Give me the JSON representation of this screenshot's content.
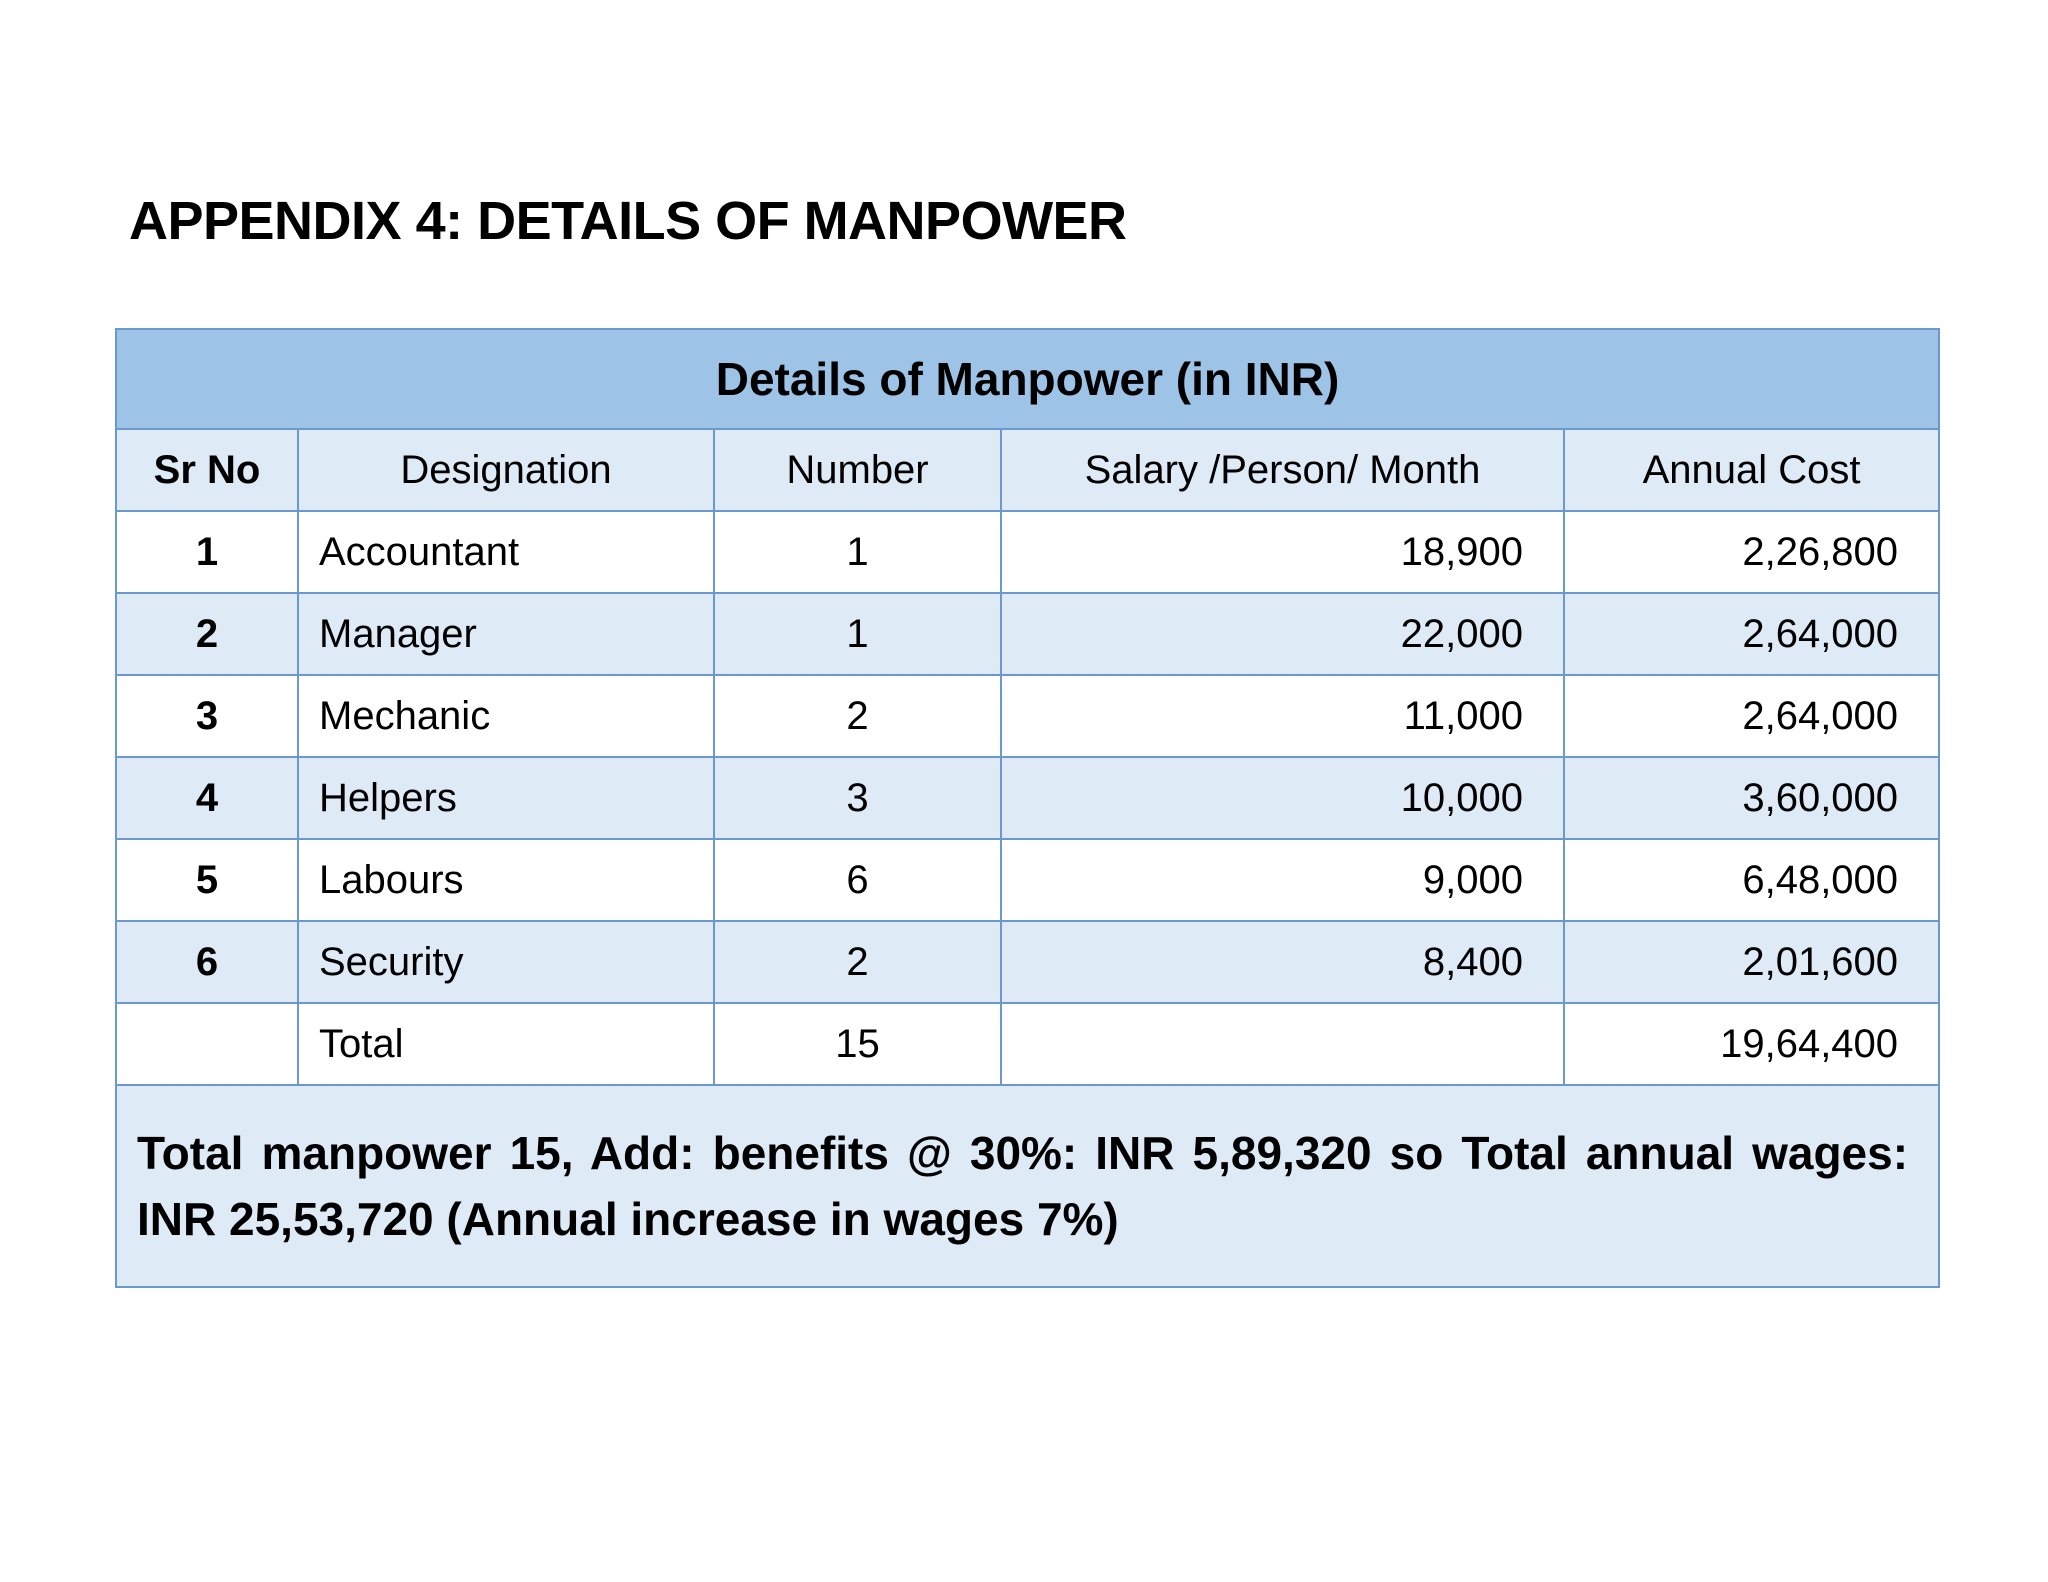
{
  "appendix_title": "APPENDIX 4: DETAILS OF MANPOWER",
  "table": {
    "caption": "Details of Manpower  (in INR)",
    "headers": {
      "sr_no": "Sr No",
      "designation": "Designation",
      "number": "Number",
      "salary": "Salary /Person/ Month",
      "annual_cost": "Annual Cost"
    },
    "rows": [
      {
        "sr_no": "1",
        "designation": "Accountant",
        "number": "1",
        "salary": "18,900",
        "annual_cost": "2,26,800"
      },
      {
        "sr_no": "2",
        "designation": "Manager",
        "number": "1",
        "salary": "22,000",
        "annual_cost": "2,64,000"
      },
      {
        "sr_no": "3",
        "designation": "Mechanic",
        "number": "2",
        "salary": "11,000",
        "annual_cost": "2,64,000"
      },
      {
        "sr_no": "4",
        "designation": "Helpers",
        "number": "3",
        "salary": "10,000",
        "annual_cost": "3,60,000"
      },
      {
        "sr_no": "5",
        "designation": "Labours",
        "number": "6",
        "salary": "9,000",
        "annual_cost": "6,48,000"
      },
      {
        "sr_no": "6",
        "designation": "Security",
        "number": "2",
        "salary": "8,400",
        "annual_cost": "2,01,600"
      }
    ],
    "total_row": {
      "sr_no": "",
      "designation": "Total",
      "number": "15",
      "salary": "",
      "annual_cost": "19,64,400"
    },
    "summary": "Total manpower 15, Add: benefits @ 30%: INR 5,89,320 so Total annual wages: INR 25,53,720  (Annual increase in wages 7%)"
  },
  "colors": {
    "caption_bg": "#9dc3e6",
    "band_bg": "#deeaf6",
    "border": "#6b98cf"
  }
}
